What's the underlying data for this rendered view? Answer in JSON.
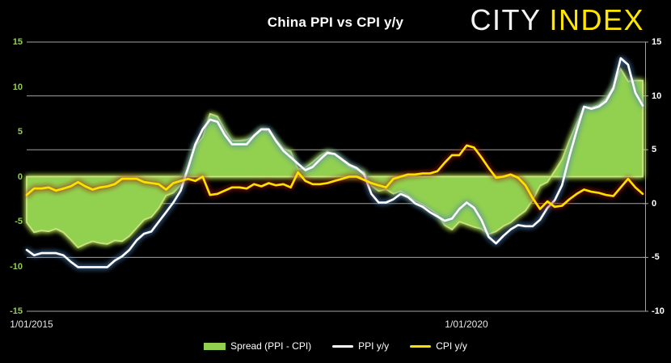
{
  "header": {
    "title": "China PPI vs CPI y/y",
    "logo": {
      "city": "CITY",
      "index": "INDEX"
    }
  },
  "colors": {
    "background": "#000000",
    "gridline": "#a3a3a3",
    "left_axis_labels": "#92d050",
    "right_axis_labels": "#ffffff",
    "x_axis_labels": "#e8e8e8",
    "spread_fill": "#92d050",
    "spread_edge": "#cbe380",
    "spread_glow": "#aedb4e",
    "ppi_line": "#ffffff",
    "ppi_glow": "#4f81bd",
    "cpi_line": "#ffe000",
    "cpi_glow": "#992600",
    "logo_city": "#f2f2f2",
    "logo_index": "#ffe600"
  },
  "chart_data": {
    "type": "area+line dual-axis combo",
    "title": "China PPI vs CPI y/y",
    "x_start": "1/01/2015",
    "frequency": "monthly",
    "n_points": 85,
    "visible_x_labels": [
      {
        "text": "1/01/2015",
        "month_index": 0
      },
      {
        "text": "1/01/2020",
        "month_index": 60
      }
    ],
    "left_axis": {
      "ticks": [
        15,
        10,
        5,
        0,
        -5,
        -10,
        -15
      ],
      "range": [
        -15,
        15
      ],
      "series": "Spread (PPI - CPI)"
    },
    "right_axis": {
      "ticks": [
        15,
        10,
        5,
        0,
        -5,
        -10
      ],
      "range": [
        -10,
        15
      ],
      "gridlines": true
    },
    "series": [
      {
        "name": "Spread (PPI - CPI)",
        "type": "area",
        "axis": "left",
        "values": [
          -5.1,
          -6.2,
          -6.0,
          -6.1,
          -5.8,
          -6.2,
          -7.0,
          -7.9,
          -7.5,
          -7.2,
          -7.4,
          -7.5,
          -7.1,
          -7.2,
          -6.6,
          -5.7,
          -4.8,
          -4.5,
          -3.5,
          -2.1,
          -1.8,
          -0.9,
          1.0,
          3.4,
          4.4,
          7.0,
          6.7,
          5.2,
          4.0,
          4.0,
          4.1,
          4.5,
          5.3,
          5.0,
          4.1,
          3.1,
          2.8,
          0.8,
          1.0,
          1.6,
          2.3,
          2.8,
          2.5,
          1.8,
          1.1,
          0.8,
          0.5,
          -1.0,
          -1.6,
          -1.4,
          -1.9,
          -1.6,
          -2.1,
          -2.7,
          -3.1,
          -3.6,
          -4.2,
          -5.4,
          -5.9,
          -5.0,
          -5.3,
          -5.6,
          -5.8,
          -6.4,
          -6.1,
          -5.5,
          -5.1,
          -4.4,
          -3.8,
          -2.6,
          -1.0,
          -0.6,
          0.6,
          1.9,
          4.0,
          5.9,
          7.7,
          7.7,
          8.0,
          8.7,
          10.0,
          12.0,
          10.6,
          10.7,
          10.7
        ]
      },
      {
        "name": "PPI y/y",
        "type": "line",
        "axis": "right",
        "values": [
          -4.3,
          -4.8,
          -4.6,
          -4.6,
          -4.6,
          -4.8,
          -5.4,
          -5.9,
          -5.9,
          -5.9,
          -5.9,
          -5.9,
          -5.3,
          -4.9,
          -4.3,
          -3.4,
          -2.8,
          -2.6,
          -1.7,
          -0.8,
          0.1,
          1.2,
          3.3,
          5.5,
          6.9,
          7.8,
          7.6,
          6.4,
          5.5,
          5.5,
          5.5,
          6.3,
          6.9,
          6.9,
          5.8,
          4.9,
          4.3,
          3.7,
          3.1,
          3.4,
          4.1,
          4.7,
          4.6,
          4.1,
          3.6,
          3.3,
          2.7,
          0.9,
          0.1,
          0.1,
          0.4,
          0.9,
          0.6,
          0.0,
          -0.3,
          -0.8,
          -1.2,
          -1.6,
          -1.4,
          -0.5,
          0.1,
          -0.4,
          -1.5,
          -3.1,
          -3.7,
          -3.0,
          -2.4,
          -2.0,
          -2.1,
          -2.1,
          -1.5,
          -0.4,
          0.3,
          1.7,
          4.4,
          6.8,
          9.0,
          8.8,
          9.0,
          9.5,
          10.7,
          13.5,
          12.9,
          10.3,
          9.1
        ]
      },
      {
        "name": "CPI y/y",
        "type": "line",
        "axis": "right",
        "values": [
          0.8,
          1.4,
          1.4,
          1.5,
          1.2,
          1.4,
          1.6,
          2.0,
          1.6,
          1.3,
          1.5,
          1.6,
          1.8,
          2.3,
          2.3,
          2.3,
          2.0,
          1.9,
          1.8,
          1.3,
          1.9,
          2.1,
          2.3,
          2.1,
          2.5,
          0.8,
          0.9,
          1.2,
          1.5,
          1.5,
          1.4,
          1.8,
          1.6,
          1.9,
          1.7,
          1.8,
          1.5,
          2.9,
          2.1,
          1.8,
          1.8,
          1.9,
          2.1,
          2.3,
          2.5,
          2.5,
          2.2,
          1.9,
          1.7,
          1.5,
          2.3,
          2.5,
          2.7,
          2.7,
          2.8,
          2.8,
          3.0,
          3.8,
          4.5,
          4.5,
          5.4,
          5.2,
          4.3,
          3.3,
          2.4,
          2.5,
          2.7,
          2.4,
          1.7,
          0.5,
          -0.5,
          0.2,
          -0.3,
          -0.2,
          0.4,
          0.9,
          1.3,
          1.1,
          1.0,
          0.8,
          0.7,
          1.5,
          2.3,
          1.5,
          0.9
        ]
      }
    ]
  },
  "legend": {
    "items": [
      {
        "label": "Spread (PPI - CPI)",
        "swatch": "area"
      },
      {
        "label": "PPI y/y",
        "swatch": "line"
      },
      {
        "label": "CPI y/y",
        "swatch": "line"
      }
    ]
  }
}
